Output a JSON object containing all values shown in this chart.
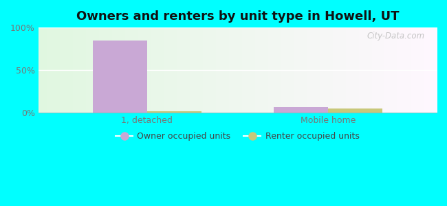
{
  "title": "Owners and renters by unit type in Howell, UT",
  "categories": [
    "1, detached",
    "Mobile home"
  ],
  "owner_values": [
    85,
    7
  ],
  "renter_values": [
    1.5,
    5
  ],
  "owner_color": "#c9a8d5",
  "renter_color": "#c8c87a",
  "background_color": "#00ffff",
  "plot_bg_colors": [
    "#d8efd8",
    "#f0faf0",
    "#eafaf4",
    "#f8fffe"
  ],
  "ylim": [
    0,
    100
  ],
  "yticks": [
    0,
    50,
    100
  ],
  "ytick_labels": [
    "0%",
    "50%",
    "100%"
  ],
  "bar_width": 0.3,
  "title_fontsize": 13,
  "legend_label_owner": "Owner occupied units",
  "legend_label_renter": "Renter occupied units",
  "watermark": "City-Data.com",
  "tick_color": "#777777",
  "grid_color": "#ffffff"
}
